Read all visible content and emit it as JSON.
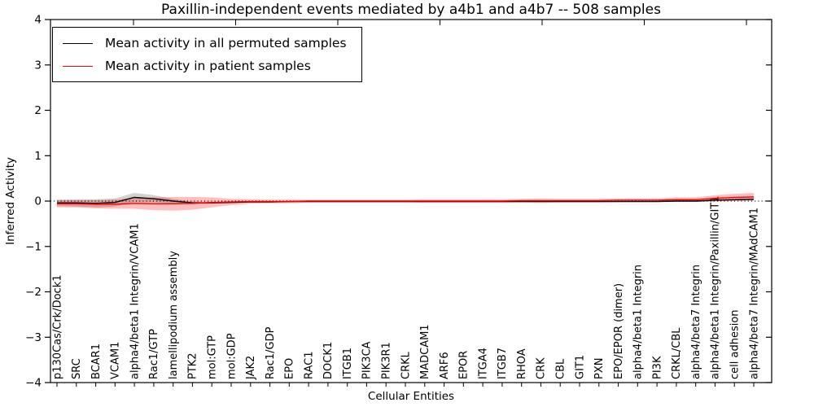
{
  "title": "Paxillin-independent events mediated by a4b1 and a4b7 -- 508 samples",
  "xlabel": "Cellular Entities",
  "ylabel": "Inferred Activity",
  "legend": {
    "items": [
      {
        "label": "Mean activity in all permuted samples",
        "color": "#000000"
      },
      {
        "label": "Mean activity in patient samples",
        "color": "#ff0000"
      }
    ]
  },
  "chart_data": {
    "type": "line",
    "title": "Paxillin-independent events mediated by a4b1 and a4b7 -- 508 samples",
    "xlabel": "Cellular Entities",
    "ylabel": "Inferred Activity",
    "ylim": [
      -4,
      4
    ],
    "yticks": [
      4,
      3,
      2,
      1,
      0,
      -1,
      -2,
      -3,
      -4
    ],
    "ytick_labels": [
      "4",
      "3",
      "2",
      "1",
      "0",
      "−1",
      "−2",
      "−3",
      "−4"
    ],
    "grid": false,
    "zero_line": true,
    "legend_position": "upper left",
    "categories": [
      "p130Cas/Crk/Dock1",
      "SRC",
      "BCAR1",
      "VCAM1",
      "alpha4/beta1 Integrin/VCAM1",
      "Rac1/GTP",
      "lamellipodium assembly",
      "PTK2",
      "mol:GTP",
      "mol:GDP",
      "JAK2",
      "Rac1/GDP",
      "EPO",
      "RAC1",
      "DOCK1",
      "ITGB1",
      "PIK3CA",
      "PIK3R1",
      "CRKL",
      "MADCAM1",
      "ARF6",
      "EPOR",
      "ITGA4",
      "ITGB7",
      "RHOA",
      "CRK",
      "CBL",
      "GIT1",
      "PXN",
      "EPO/EPOR (dimer)",
      "alpha4/beta1 Integrin",
      "PI3K",
      "CRKL/CBL",
      "alpha4/beta7 Integrin",
      "alpha4/beta1 Integrin/Paxillin/GIT1",
      "cell adhesion",
      "alpha4/beta7 Integrin/MAdCAM1"
    ],
    "series": [
      {
        "name": "Mean activity in all permuted samples",
        "color": "#000000",
        "band_color": "rgba(0,0,0,0.18)",
        "values": [
          -0.04,
          -0.04,
          -0.05,
          -0.03,
          0.08,
          0.05,
          0.0,
          -0.04,
          -0.04,
          -0.03,
          -0.02,
          -0.02,
          -0.01,
          -0.01,
          -0.01,
          -0.01,
          -0.01,
          -0.01,
          -0.01,
          -0.01,
          -0.01,
          -0.01,
          -0.01,
          -0.01,
          -0.01,
          -0.01,
          -0.01,
          -0.01,
          -0.01,
          -0.01,
          -0.01,
          -0.01,
          0.0,
          0.0,
          0.02,
          0.03,
          0.04
        ],
        "band": [
          0.07,
          0.08,
          0.09,
          0.09,
          0.1,
          0.08,
          0.05,
          0.03,
          0.02,
          0.01,
          0.01,
          0.01,
          0.01,
          0.01,
          0.01,
          0.01,
          0.01,
          0.01,
          0.01,
          0.01,
          0.01,
          0.01,
          0.01,
          0.01,
          0.01,
          0.01,
          0.01,
          0.01,
          0.01,
          0.01,
          0.01,
          0.01,
          0.01,
          0.01,
          0.02,
          0.02,
          0.02
        ]
      },
      {
        "name": "Mean activity in patient samples",
        "color": "#ff0000",
        "band_color": "rgba(255,0,0,0.25)",
        "values": [
          -0.06,
          -0.06,
          -0.07,
          -0.07,
          -0.05,
          -0.06,
          -0.06,
          -0.05,
          -0.03,
          -0.02,
          -0.01,
          -0.01,
          -0.01,
          0.0,
          0.0,
          0.0,
          0.0,
          0.0,
          0.0,
          0.0,
          0.0,
          0.0,
          0.0,
          0.0,
          0.01,
          0.01,
          0.01,
          0.01,
          0.01,
          0.02,
          0.02,
          0.02,
          0.03,
          0.03,
          0.06,
          0.08,
          0.09
        ],
        "band": [
          0.08,
          0.08,
          0.09,
          0.1,
          0.12,
          0.14,
          0.15,
          0.14,
          0.11,
          0.07,
          0.05,
          0.04,
          0.04,
          0.03,
          0.03,
          0.03,
          0.03,
          0.03,
          0.03,
          0.04,
          0.04,
          0.04,
          0.04,
          0.04,
          0.04,
          0.05,
          0.04,
          0.04,
          0.04,
          0.04,
          0.04,
          0.04,
          0.05,
          0.05,
          0.07,
          0.08,
          0.09
        ]
      }
    ]
  }
}
